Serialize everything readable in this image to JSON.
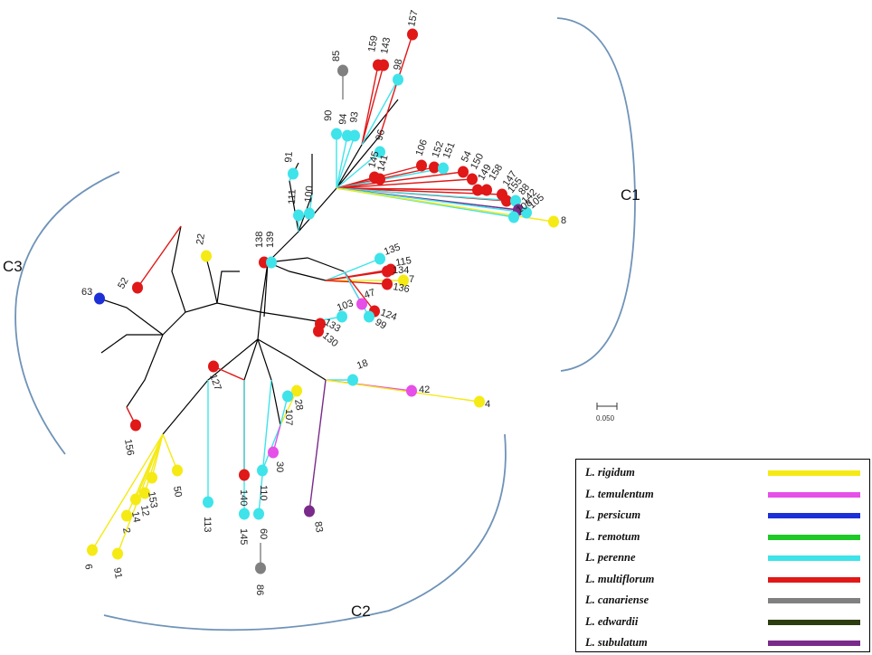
{
  "clusters": [
    {
      "id": "c1",
      "label": "C1"
    },
    {
      "id": "c2",
      "label": "C2"
    },
    {
      "id": "c3",
      "label": "C3"
    }
  ],
  "scale_bar": {
    "label": "0.050"
  },
  "species_colors": {
    "rigidum": "#f5ea14",
    "temulentum": "#e64fe8",
    "persicum": "#1d2fd6",
    "remotum": "#1fc928",
    "perenne": "#3fe3ea",
    "multiflorum": "#e01818",
    "canariense": "#808080",
    "edwardii": "#2c3d10",
    "subulatum": "#7a2a8a"
  },
  "legend": [
    {
      "name": "L. rigidum",
      "color": "#f5ea14"
    },
    {
      "name": "L. temulentum",
      "color": "#e64fe8"
    },
    {
      "name": "L. persicum",
      "color": "#1d2fd6"
    },
    {
      "name": "L. remotum",
      "color": "#1fc928"
    },
    {
      "name": "L. perenne",
      "color": "#3fe3ea"
    },
    {
      "name": "L. multiflorum",
      "color": "#e01818"
    },
    {
      "name": "L. canariense",
      "color": "#808080"
    },
    {
      "name": "L. edwardii",
      "color": "#2c3d10"
    },
    {
      "name": "L. subulatum",
      "color": "#7a2a8a"
    }
  ],
  "leaves": [
    {
      "label": "157",
      "species": "multiflorum"
    },
    {
      "label": "85",
      "species": "canariense"
    },
    {
      "label": "159",
      "species": "multiflorum"
    },
    {
      "label": "143",
      "species": "multiflorum"
    },
    {
      "label": "98",
      "species": "perenne"
    },
    {
      "label": "90",
      "species": "perenne"
    },
    {
      "label": "94",
      "species": "perenne"
    },
    {
      "label": "93",
      "species": "perenne"
    },
    {
      "label": "96",
      "species": "perenne"
    },
    {
      "label": "91",
      "species": "perenne"
    },
    {
      "label": "100",
      "species": "perenne"
    },
    {
      "label": "111",
      "species": "perenne"
    },
    {
      "label": "145",
      "species": "multiflorum"
    },
    {
      "label": "141",
      "species": "multiflorum"
    },
    {
      "label": "106",
      "species": "multiflorum"
    },
    {
      "label": "152",
      "species": "multiflorum"
    },
    {
      "label": "151",
      "species": "perenne"
    },
    {
      "label": "54",
      "species": "multiflorum"
    },
    {
      "label": "150",
      "species": "multiflorum"
    },
    {
      "label": "149",
      "species": "multiflorum"
    },
    {
      "label": "158",
      "species": "multiflorum"
    },
    {
      "label": "147",
      "species": "multiflorum"
    },
    {
      "label": "155",
      "species": "multiflorum"
    },
    {
      "label": "88",
      "species": "perenne"
    },
    {
      "label": "142",
      "species": "subulatum"
    },
    {
      "label": "105",
      "species": "perenne"
    },
    {
      "label": "108",
      "species": "perenne"
    },
    {
      "label": "8",
      "species": "rigidum"
    },
    {
      "label": "135",
      "species": "perenne"
    },
    {
      "label": "115",
      "species": "multiflorum"
    },
    {
      "label": "134",
      "species": "multiflorum"
    },
    {
      "label": "7",
      "species": "rigidum"
    },
    {
      "label": "136",
      "species": "multiflorum"
    },
    {
      "label": "47",
      "species": "temulentum"
    },
    {
      "label": "124",
      "species": "multiflorum"
    },
    {
      "label": "99",
      "species": "perenne"
    },
    {
      "label": "103",
      "species": "perenne"
    },
    {
      "label": "133",
      "species": "multiflorum"
    },
    {
      "label": "130",
      "species": "multiflorum"
    },
    {
      "label": "138",
      "species": "multiflorum"
    },
    {
      "label": "139",
      "species": "perenne"
    },
    {
      "label": "22",
      "species": "rigidum"
    },
    {
      "label": "63",
      "species": "persicum"
    },
    {
      "label": "52",
      "species": "multiflorum"
    },
    {
      "label": "18",
      "species": "perenne"
    },
    {
      "label": "42",
      "species": "temulentum"
    },
    {
      "label": "4",
      "species": "rigidum"
    },
    {
      "label": "28",
      "species": "rigidum"
    },
    {
      "label": "107",
      "species": "perenne"
    },
    {
      "label": "127",
      "species": "multiflorum"
    },
    {
      "label": "156",
      "species": "multiflorum"
    },
    {
      "label": "153",
      "species": "rigidum"
    },
    {
      "label": "50",
      "species": "rigidum"
    },
    {
      "label": "113",
      "species": "perenne"
    },
    {
      "label": "140",
      "species": "multiflorum"
    },
    {
      "label": "110",
      "species": "perenne"
    },
    {
      "label": "30",
      "species": "temulentum"
    },
    {
      "label": "145",
      "species": "perenne"
    },
    {
      "label": "60",
      "species": "perenne"
    },
    {
      "label": "83",
      "species": "subulatum"
    },
    {
      "label": "86",
      "species": "canariense"
    },
    {
      "label": "6",
      "species": "rigidum"
    },
    {
      "label": "91",
      "species": "rigidum"
    },
    {
      "label": "2",
      "species": "rigidum"
    },
    {
      "label": "14",
      "species": "rigidum"
    },
    {
      "label": "12",
      "species": "rigidum"
    }
  ]
}
